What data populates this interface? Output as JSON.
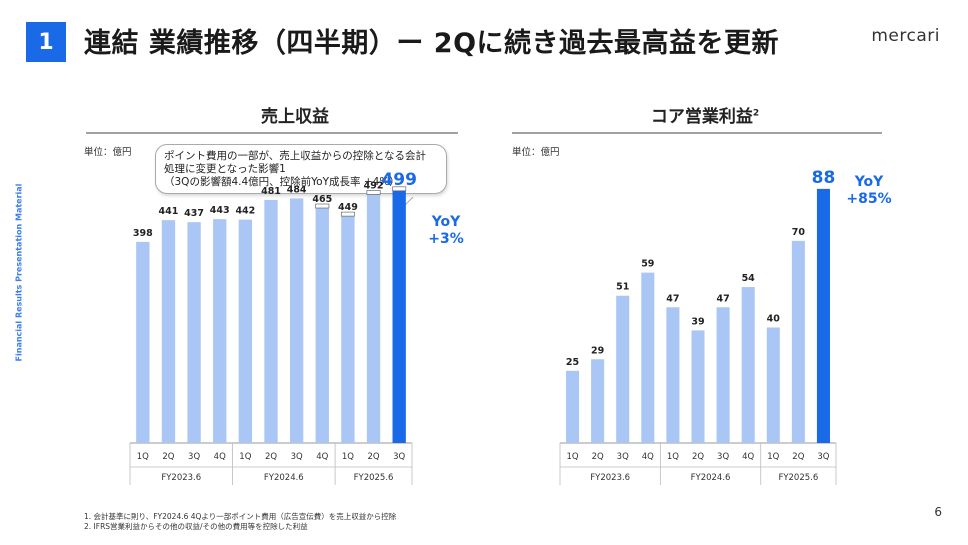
{
  "header": {
    "section_number": "1",
    "title": "連結 業績推移（四半期）ー 2Qに続き過去最高益を更新",
    "logo": "mercari",
    "side_label": "Financial Results Presentation Material"
  },
  "left": {
    "title": "売上収益",
    "unit": "単位：億円",
    "callout": [
      "ポイント費用の一部が、売上収益からの控除となる会計",
      "処理に変更となった影響1",
      "（3Qの影響額4.4億円、控除前YoY成長率 +4%）"
    ],
    "yoy_label": "YoY",
    "yoy_value": "+3%"
  },
  "right": {
    "title": "コア営業利益",
    "title_sup": "2",
    "unit": "単位：億円",
    "yoy_label": "YoY",
    "yoy_value": "+85%"
  },
  "footnotes": [
    "1. 会計基準に則り、FY2024.6 4Qより一部ポイント費用（広告宣伝費）を売上収益から控除",
    "2. IFRS営業利益からその他の収益/その他の費用等を控除した利益"
  ],
  "page_number": "6",
  "colors": {
    "bar": "#a9c6f5",
    "highlight": "#1a6ae8",
    "accent": "#1a6ae8"
  },
  "chart_data": [
    {
      "type": "bar",
      "title": "売上収益",
      "categories": [
        "1Q",
        "2Q",
        "3Q",
        "4Q",
        "1Q",
        "2Q",
        "3Q",
        "4Q",
        "1Q",
        "2Q",
        "3Q"
      ],
      "groups": [
        {
          "label": "FY2023.6",
          "count": 4
        },
        {
          "label": "FY2024.6",
          "count": 4
        },
        {
          "label": "FY2025.6",
          "count": 3
        }
      ],
      "values": [
        398,
        441,
        437,
        443,
        442,
        481,
        484,
        465,
        449,
        492,
        499
      ],
      "highlight_index": 10,
      "ylim": [
        0,
        560
      ]
    },
    {
      "type": "bar",
      "title": "コア営業利益",
      "categories": [
        "1Q",
        "2Q",
        "3Q",
        "4Q",
        "1Q",
        "2Q",
        "3Q",
        "4Q",
        "1Q",
        "2Q",
        "3Q"
      ],
      "groups": [
        {
          "label": "FY2023.6",
          "count": 4
        },
        {
          "label": "FY2024.6",
          "count": 4
        },
        {
          "label": "FY2025.6",
          "count": 3
        }
      ],
      "values": [
        25,
        29,
        51,
        59,
        47,
        39,
        47,
        54,
        40,
        70,
        88
      ],
      "highlight_index": 10,
      "ylim": [
        0,
        98
      ]
    }
  ]
}
